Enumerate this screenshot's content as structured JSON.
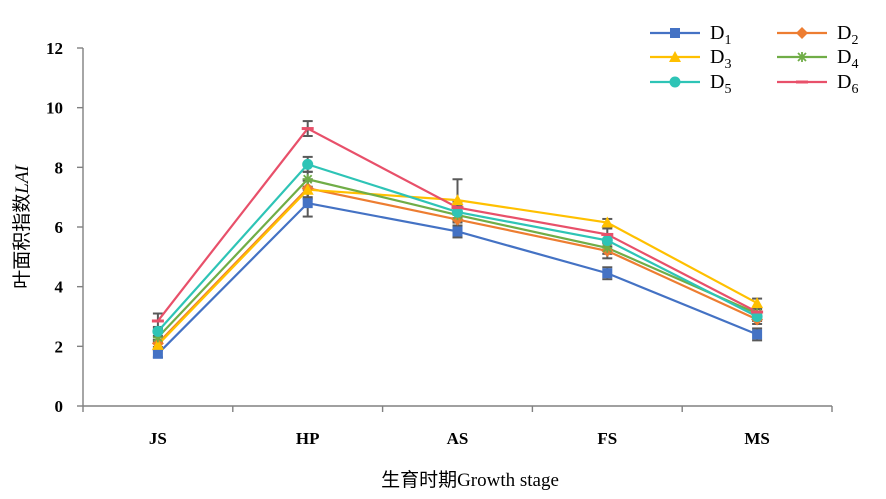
{
  "chart_data": {
    "type": "line",
    "title": "",
    "xlabel": "生育时期Growth stage",
    "ylabel_cn": "叶面积指数",
    "ylabel_en": "LAI",
    "categories": [
      "JS",
      "HP",
      "AS",
      "FS",
      "MS"
    ],
    "ylim": [
      0,
      12
    ],
    "yticks": [
      "0",
      "2",
      "4",
      "6",
      "8",
      "10",
      "12"
    ],
    "grid": false,
    "legend_position": "top-right",
    "series": [
      {
        "name": "D",
        "sub": "1",
        "color": "#4472C4",
        "marker": "square",
        "values": [
          1.75,
          6.8,
          5.85,
          4.45,
          2.4
        ],
        "errors": [
          0.12,
          0.45,
          0.2,
          0.2,
          0.2
        ]
      },
      {
        "name": "D",
        "sub": "2",
        "color": "#ED7D31",
        "marker": "diamond",
        "values": [
          2.1,
          7.3,
          6.25,
          5.2,
          2.9
        ],
        "errors": [
          0.12,
          0.3,
          0.2,
          0.25,
          0.15
        ]
      },
      {
        "name": "D",
        "sub": "3",
        "color": "#FFC000",
        "marker": "triangle",
        "values": [
          2.05,
          7.25,
          6.9,
          6.15,
          3.45
        ],
        "errors": [
          0.15,
          0.3,
          0.7,
          0.12,
          0.15
        ]
      },
      {
        "name": "D",
        "sub": "4",
        "color": "#70AD47",
        "marker": "star",
        "values": [
          2.3,
          7.6,
          6.4,
          5.3,
          3.1
        ],
        "errors": [
          0.15,
          0.25,
          0.25,
          0.2,
          0.15
        ]
      },
      {
        "name": "D",
        "sub": "5",
        "color": "#2EC4B6",
        "marker": "circle",
        "values": [
          2.5,
          8.1,
          6.5,
          5.55,
          3.0
        ],
        "errors": [
          0.15,
          0.25,
          0.2,
          0.2,
          0.15
        ]
      },
      {
        "name": "D",
        "sub": "6",
        "color": "#E8506A",
        "marker": "dash",
        "values": [
          2.85,
          9.3,
          6.65,
          5.75,
          3.15
        ],
        "errors": [
          0.25,
          0.25,
          0.2,
          0.2,
          0.15
        ]
      }
    ]
  }
}
